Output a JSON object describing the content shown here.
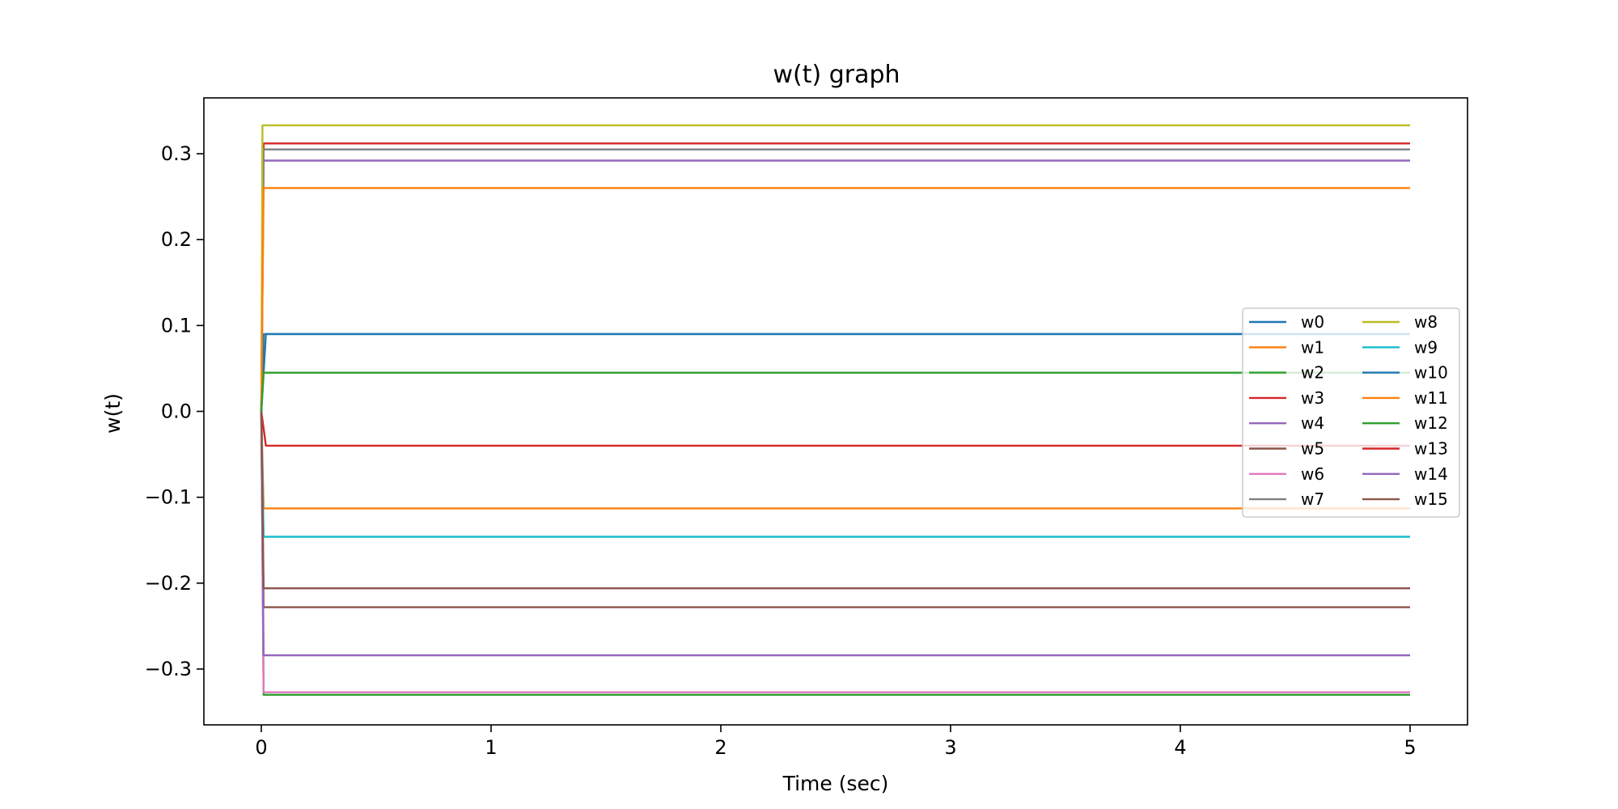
{
  "chart_data": {
    "type": "line",
    "title": "w(t) graph",
    "xlabel": "Time (sec)",
    "ylabel": "w(t)",
    "xlim": [
      -0.25,
      5.25
    ],
    "ylim": [
      -0.365,
      0.365
    ],
    "xticks": [
      0,
      1,
      2,
      3,
      4,
      5
    ],
    "yticks": [
      -0.3,
      -0.2,
      -0.1,
      0.0,
      0.1,
      0.2,
      0.3
    ],
    "xtick_labels": [
      "0",
      "1",
      "2",
      "3",
      "4",
      "5"
    ],
    "ytick_labels": [
      "−0.3",
      "−0.2",
      "−0.1",
      "0.0",
      "0.1",
      "0.2",
      "0.3"
    ],
    "grid": false,
    "legend_position": "center-right",
    "legend_columns": 2,
    "series": [
      {
        "name": "w0",
        "color": "#1f77b4",
        "points": [
          [
            0,
            0.0
          ],
          [
            0.02,
            0.09
          ],
          [
            5,
            0.09
          ]
        ]
      },
      {
        "name": "w1",
        "color": "#ff7f0e",
        "points": [
          [
            0,
            0.0
          ],
          [
            0.01,
            -0.113
          ],
          [
            5,
            -0.113
          ]
        ]
      },
      {
        "name": "w2",
        "color": "#2ca02c",
        "points": [
          [
            0,
            0.0
          ],
          [
            0.01,
            -0.33
          ],
          [
            5,
            -0.33
          ]
        ]
      },
      {
        "name": "w3",
        "color": "#d62728",
        "points": [
          [
            0,
            0.0
          ],
          [
            0.01,
            0.312
          ],
          [
            5,
            0.312
          ]
        ]
      },
      {
        "name": "w4",
        "color": "#9467bd",
        "points": [
          [
            0,
            0.0
          ],
          [
            0.01,
            0.292
          ],
          [
            5,
            0.292
          ]
        ]
      },
      {
        "name": "w5",
        "color": "#8c564b",
        "points": [
          [
            0,
            0.0
          ],
          [
            0.01,
            -0.228
          ],
          [
            5,
            -0.228
          ]
        ]
      },
      {
        "name": "w6",
        "color": "#e377c2",
        "points": [
          [
            0,
            0.0
          ],
          [
            0.01,
            -0.327
          ],
          [
            5,
            -0.327
          ]
        ]
      },
      {
        "name": "w7",
        "color": "#7f7f7f",
        "points": [
          [
            0,
            0.0
          ],
          [
            0.01,
            0.305
          ],
          [
            5,
            0.305
          ]
        ]
      },
      {
        "name": "w8",
        "color": "#bcbd22",
        "points": [
          [
            0,
            0.0
          ],
          [
            0.005,
            0.333
          ],
          [
            5,
            0.333
          ]
        ]
      },
      {
        "name": "w9",
        "color": "#17becf",
        "points": [
          [
            0,
            0.0
          ],
          [
            0.01,
            -0.146
          ],
          [
            5,
            -0.146
          ]
        ]
      },
      {
        "name": "w10",
        "color": "#1f77b4",
        "points": [
          [
            0,
            0.0
          ],
          [
            0.01,
            0.09
          ],
          [
            5,
            0.09
          ]
        ]
      },
      {
        "name": "w11",
        "color": "#ff7f0e",
        "points": [
          [
            0,
            0.0
          ],
          [
            0.01,
            0.26
          ],
          [
            5,
            0.26
          ]
        ]
      },
      {
        "name": "w12",
        "color": "#2ca02c",
        "points": [
          [
            0,
            0.0
          ],
          [
            0.01,
            0.045
          ],
          [
            5,
            0.045
          ]
        ]
      },
      {
        "name": "w13",
        "color": "#d62728",
        "points": [
          [
            0,
            0.0
          ],
          [
            0.02,
            -0.04
          ],
          [
            5,
            -0.04
          ]
        ]
      },
      {
        "name": "w14",
        "color": "#9467bd",
        "points": [
          [
            0,
            0.0
          ],
          [
            0.01,
            -0.284
          ],
          [
            5,
            -0.284
          ]
        ]
      },
      {
        "name": "w15",
        "color": "#8c564b",
        "points": [
          [
            0,
            0.0
          ],
          [
            0.01,
            -0.206
          ],
          [
            5,
            -0.206
          ]
        ]
      }
    ]
  }
}
